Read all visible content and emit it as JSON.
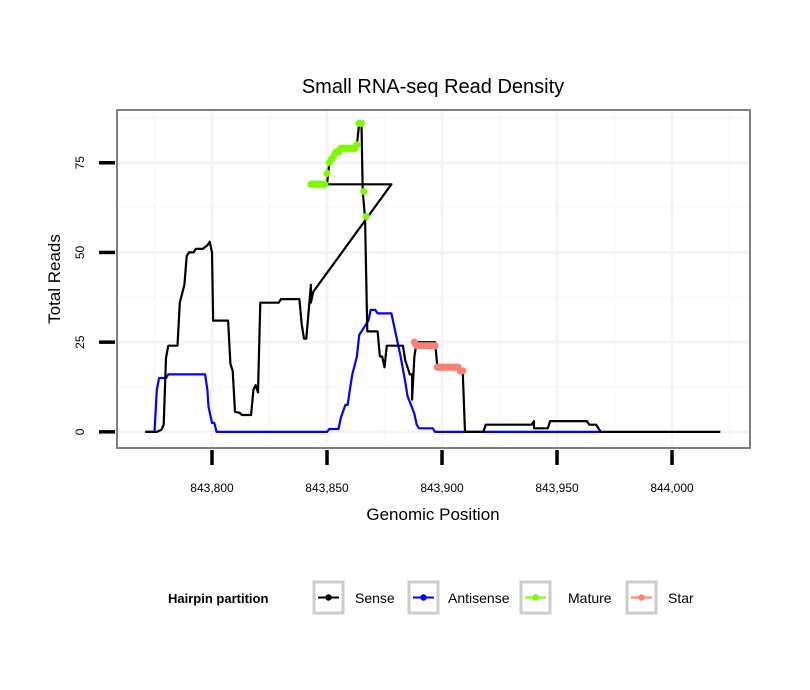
{
  "chart_data": {
    "type": "line",
    "title": "Small RNA-seq Read Density",
    "xlabel": "Genomic Position",
    "ylabel": "Total Reads",
    "xlim": [
      843758.7,
      844033.9
    ],
    "ylim": [
      -4.5,
      89.7
    ],
    "x_ticks": [
      843800,
      843850,
      843900,
      843950,
      844000
    ],
    "x_tick_labels": [
      "843,800",
      "843,850",
      "843,900",
      "843,950",
      "844,000"
    ],
    "y_ticks": [
      0,
      25,
      50,
      75
    ],
    "y_tick_labels": [
      "0",
      "25",
      "50",
      "75"
    ],
    "grid": true,
    "legend": {
      "title": "Hairpin partition",
      "position": "bottom",
      "entries": [
        {
          "label": "Sense",
          "color": "#000000"
        },
        {
          "label": "Antisense",
          "color": "#0000ff"
        },
        {
          "label": "Mature",
          "color": "#7cfc00"
        },
        {
          "label": "Star",
          "color": "#fa8072"
        }
      ]
    },
    "series": [
      {
        "name": "Sense",
        "color": "#000000",
        "style": "line",
        "points": [
          [
            843771,
            0
          ],
          [
            843776,
            0
          ],
          [
            843778,
            0.6
          ],
          [
            843779,
            2
          ],
          [
            843780,
            20.6
          ],
          [
            843781,
            24
          ],
          [
            843785,
            24
          ],
          [
            843786,
            36
          ],
          [
            843788,
            41
          ],
          [
            843789,
            49
          ],
          [
            843790,
            50
          ],
          [
            843792,
            50
          ],
          [
            843793,
            51
          ],
          [
            843796,
            51
          ],
          [
            843798,
            52
          ],
          [
            843799,
            53
          ],
          [
            843800,
            50
          ],
          [
            843800.5,
            32
          ],
          [
            843800.5,
            31
          ],
          [
            843807,
            31
          ],
          [
            843808,
            19
          ],
          [
            843809,
            17
          ],
          [
            843810,
            5.6
          ],
          [
            843812,
            5.3
          ],
          [
            843813,
            4.7
          ],
          [
            843817,
            4.7
          ],
          [
            843818,
            11.7
          ],
          [
            843819,
            13
          ],
          [
            843820,
            11
          ],
          [
            843821,
            36
          ],
          [
            843829,
            36
          ],
          [
            843830,
            37
          ],
          [
            843838,
            37
          ],
          [
            843839,
            30
          ],
          [
            843840,
            26
          ],
          [
            843841,
            26
          ],
          [
            843843,
            41
          ],
          [
            843843,
            36
          ],
          [
            843844,
            39
          ],
          [
            843878,
            69
          ],
          [
            843850,
            69
          ],
          [
            843851,
            75
          ],
          [
            843853,
            78
          ],
          [
            843855,
            79
          ],
          [
            843861,
            79
          ],
          [
            843863,
            80
          ],
          [
            843864,
            86
          ],
          [
            843865,
            86
          ],
          [
            843865.5,
            67
          ],
          [
            843866.5,
            60
          ],
          [
            843867.5,
            28
          ],
          [
            843872,
            28
          ],
          [
            843873,
            21
          ],
          [
            843874,
            21
          ],
          [
            843875,
            18
          ],
          [
            843876,
            24
          ],
          [
            843883,
            24
          ],
          [
            843884,
            20
          ],
          [
            843886,
            16
          ],
          [
            843887,
            16
          ],
          [
            843887,
            9
          ],
          [
            843888,
            21
          ],
          [
            843889,
            25
          ],
          [
            843890,
            25
          ],
          [
            843897,
            25
          ],
          [
            843898,
            18
          ],
          [
            843907,
            18
          ],
          [
            843909,
            17
          ],
          [
            843910,
            0
          ],
          [
            843918,
            0
          ],
          [
            843919,
            2
          ],
          [
            843939,
            2
          ],
          [
            843940,
            3
          ],
          [
            843940,
            1
          ],
          [
            843946,
            1
          ],
          [
            843947,
            3
          ],
          [
            843963,
            3
          ],
          [
            843964,
            2
          ],
          [
            843967,
            2
          ],
          [
            843969,
            0
          ],
          [
            844021,
            0
          ]
        ]
      },
      {
        "name": "Antisense",
        "color": "#0000ff",
        "style": "line",
        "points": [
          [
            843771,
            0
          ],
          [
            843775,
            0
          ],
          [
            843776,
            11.7
          ],
          [
            843777,
            15
          ],
          [
            843780,
            15
          ],
          [
            843781,
            16
          ],
          [
            843797,
            16
          ],
          [
            843798,
            11.7
          ],
          [
            843798.5,
            7
          ],
          [
            843800,
            2.5
          ],
          [
            843801,
            2.5
          ],
          [
            843802,
            0
          ],
          [
            843850,
            0
          ],
          [
            843851,
            0.8
          ],
          [
            843855,
            0.8
          ],
          [
            843856,
            3.9
          ],
          [
            843858,
            7.5
          ],
          [
            843859,
            7.5
          ],
          [
            843860,
            12
          ],
          [
            843861,
            16
          ],
          [
            843863,
            21
          ],
          [
            843864,
            27
          ],
          [
            843866,
            29
          ],
          [
            843867,
            30
          ],
          [
            843868,
            31
          ],
          [
            843869,
            34
          ],
          [
            843871,
            34
          ],
          [
            843872,
            33
          ],
          [
            843878,
            33
          ],
          [
            843879,
            30
          ],
          [
            843880,
            27
          ],
          [
            843881,
            24
          ],
          [
            843882,
            21
          ],
          [
            843884,
            14
          ],
          [
            843885,
            10
          ],
          [
            843888,
            5
          ],
          [
            843889,
            2
          ],
          [
            843890,
            1
          ],
          [
            843896,
            1
          ],
          [
            843897,
            0
          ],
          [
            843969,
            0
          ]
        ]
      },
      {
        "name": "Mature",
        "color": "#7cfc00",
        "style": "points",
        "points": [
          [
            843843,
            69
          ],
          [
            843844,
            69
          ],
          [
            843845,
            69
          ],
          [
            843846,
            69
          ],
          [
            843847,
            69
          ],
          [
            843848,
            69
          ],
          [
            843849,
            69
          ],
          [
            843850,
            72
          ],
          [
            843851,
            75
          ],
          [
            843852,
            76
          ],
          [
            843853,
            77
          ],
          [
            843854,
            78
          ],
          [
            843855,
            78
          ],
          [
            843856,
            79
          ],
          [
            843857,
            79
          ],
          [
            843858,
            79
          ],
          [
            843859,
            79
          ],
          [
            843860,
            79
          ],
          [
            843861,
            79
          ],
          [
            843862,
            79
          ],
          [
            843863,
            80
          ],
          [
            843864,
            86
          ],
          [
            843865,
            86
          ],
          [
            843866,
            67
          ],
          [
            843867,
            60
          ]
        ]
      },
      {
        "name": "Star",
        "color": "#fa8072",
        "style": "points",
        "points": [
          [
            843888,
            25
          ],
          [
            843889,
            24
          ],
          [
            843890,
            24
          ],
          [
            843891,
            24
          ],
          [
            843892,
            24
          ],
          [
            843893,
            24
          ],
          [
            843894,
            24
          ],
          [
            843895,
            24
          ],
          [
            843896,
            24
          ],
          [
            843897,
            24
          ],
          [
            843898,
            18
          ],
          [
            843899,
            18
          ],
          [
            843900,
            18
          ],
          [
            843901,
            18
          ],
          [
            843902,
            18
          ],
          [
            843903,
            18
          ],
          [
            843904,
            18
          ],
          [
            843905,
            18
          ],
          [
            843906,
            18
          ],
          [
            843907,
            18
          ],
          [
            843908,
            17
          ],
          [
            843909,
            17
          ]
        ]
      }
    ]
  }
}
